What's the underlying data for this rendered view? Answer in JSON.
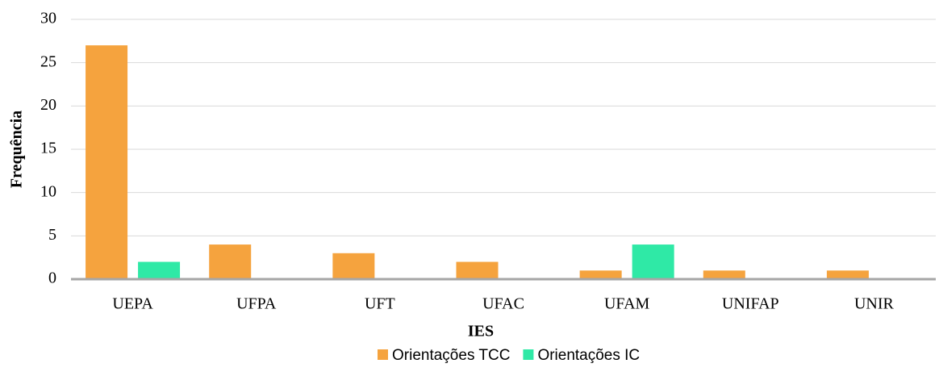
{
  "chart_data": {
    "type": "bar",
    "categories": [
      "UEPA",
      "UFPA",
      "UFT",
      "UFAC",
      "UFAM",
      "UNIFAP",
      "UNIR"
    ],
    "series": [
      {
        "name": "Orientações TCC",
        "color": "#f5a33e",
        "values": [
          27,
          4,
          3,
          2,
          1,
          1,
          1
        ]
      },
      {
        "name": "Orientações IC",
        "color": "#2fe9a6",
        "values": [
          2,
          0,
          0,
          0,
          4,
          0,
          0
        ]
      }
    ],
    "ylim": [
      0,
      30
    ],
    "yticks": [
      0,
      5,
      10,
      15,
      20,
      25,
      30
    ],
    "grid": true,
    "xlabel": "IES",
    "ylabel": "Frequência",
    "legend": "bottom"
  }
}
